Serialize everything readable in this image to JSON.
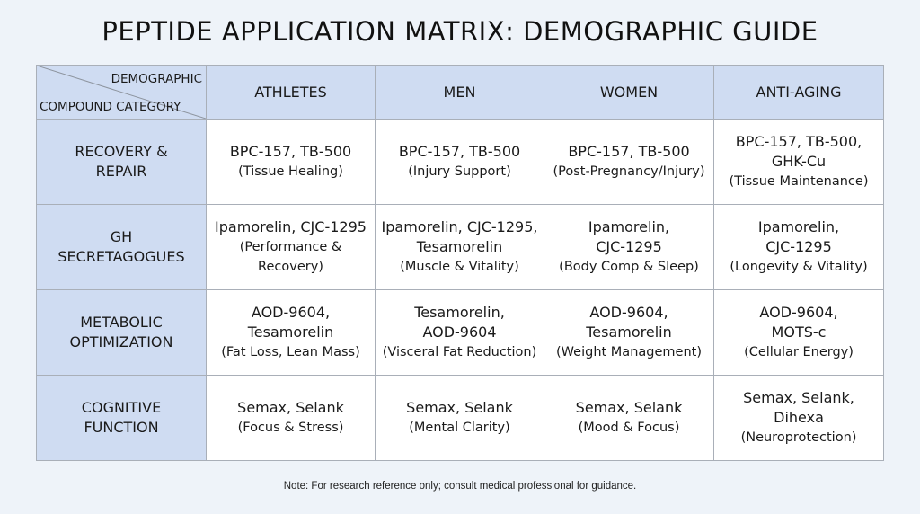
{
  "title": "PEPTIDE APPLICATION MATRIX: DEMOGRAPHIC GUIDE",
  "corner": {
    "top": "DEMOGRAPHIC",
    "bottom": "COMPOUND CATEGORY"
  },
  "columns": [
    "ATHLETES",
    "MEN",
    "WOMEN",
    "ANTI-AGING"
  ],
  "rows": [
    {
      "label": [
        "RECOVERY &",
        "REPAIR"
      ],
      "cells": [
        {
          "main": [
            "BPC-157, TB-500"
          ],
          "sub": [
            "(Tissue Healing)"
          ]
        },
        {
          "main": [
            "BPC-157, TB-500"
          ],
          "sub": [
            "(Injury Support)"
          ]
        },
        {
          "main": [
            "BPC-157, TB-500"
          ],
          "sub": [
            "(Post-Pregnancy/Injury)"
          ]
        },
        {
          "main": [
            "BPC-157, TB-500,",
            "GHK-Cu"
          ],
          "sub": [
            "(Tissue Maintenance)"
          ]
        }
      ]
    },
    {
      "label": [
        "GH",
        "SECRETAGOGUES"
      ],
      "cells": [
        {
          "main": [
            "Ipamorelin, CJC-1295"
          ],
          "sub": [
            "(Performance &",
            "Recovery)"
          ]
        },
        {
          "main": [
            "Ipamorelin, CJC-1295,",
            "Tesamorelin"
          ],
          "sub": [
            "(Muscle & Vitality)"
          ]
        },
        {
          "main": [
            "Ipamorelin,",
            "CJC-1295"
          ],
          "sub": [
            "(Body Comp & Sleep)"
          ]
        },
        {
          "main": [
            "Ipamorelin,",
            "CJC-1295"
          ],
          "sub": [
            "(Longevity & Vitality)"
          ]
        }
      ]
    },
    {
      "label": [
        "METABOLIC",
        "OPTIMIZATION"
      ],
      "cells": [
        {
          "main": [
            "AOD-9604,",
            "Tesamorelin"
          ],
          "sub": [
            "(Fat Loss, Lean Mass)"
          ]
        },
        {
          "main": [
            "Tesamorelin,",
            "AOD-9604"
          ],
          "sub": [
            "(Visceral Fat Reduction)"
          ]
        },
        {
          "main": [
            "AOD-9604,",
            "Tesamorelin"
          ],
          "sub": [
            "(Weight Management)"
          ]
        },
        {
          "main": [
            "AOD-9604,",
            "MOTS-c"
          ],
          "sub": [
            "(Cellular Energy)"
          ]
        }
      ]
    },
    {
      "label": [
        "COGNITIVE",
        "FUNCTION"
      ],
      "cells": [
        {
          "main": [
            "Semax, Selank"
          ],
          "sub": [
            "(Focus & Stress)"
          ]
        },
        {
          "main": [
            "Semax, Selank"
          ],
          "sub": [
            "(Mental Clarity)"
          ]
        },
        {
          "main": [
            "Semax, Selank"
          ],
          "sub": [
            "(Mood & Focus)"
          ]
        },
        {
          "main": [
            "Semax, Selank,",
            "Dihexa"
          ],
          "sub": [
            "(Neuroprotection)"
          ]
        }
      ]
    }
  ],
  "note": "Note: For research reference only; consult medical professional for guidance.",
  "colors": {
    "header_bg": "#cfdcf2",
    "page_bg": "#eef3f9",
    "border": "#a9afb8"
  }
}
